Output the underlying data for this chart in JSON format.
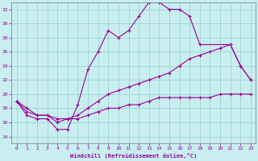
{
  "title": "Windchill (Refroidissement éolien,°C)",
  "bg_color": "#c8eef0",
  "line_color": "#990099",
  "grid_color": "#99cccc",
  "xlim": [
    -0.5,
    23.5
  ],
  "ylim": [
    13,
    33
  ],
  "xticks": [
    0,
    1,
    2,
    3,
    4,
    5,
    6,
    7,
    8,
    9,
    10,
    11,
    12,
    13,
    14,
    15,
    16,
    17,
    18,
    19,
    20,
    21,
    22,
    23
  ],
  "yticks": [
    14,
    16,
    18,
    20,
    22,
    24,
    26,
    28,
    30,
    32
  ],
  "curve1_x": [
    0,
    1,
    2,
    3,
    4,
    5,
    6,
    7,
    8,
    9,
    10,
    11,
    12,
    13,
    14,
    15,
    16,
    17,
    18,
    21,
    22,
    23
  ],
  "curve1_y": [
    19,
    17,
    16.5,
    16.5,
    15,
    15,
    18.5,
    23.5,
    26,
    29,
    28,
    29,
    31,
    33,
    33,
    32,
    32,
    31,
    27,
    27,
    24,
    22
  ],
  "curve2_x": [
    0,
    1,
    2,
    3,
    4,
    5,
    6,
    7,
    8,
    9,
    10,
    11,
    12,
    13,
    14,
    15,
    16,
    17,
    18,
    19,
    20,
    21,
    22,
    23
  ],
  "curve2_y": [
    19,
    18,
    17,
    17,
    16,
    16.5,
    17,
    18,
    19,
    20,
    20.5,
    21,
    21.5,
    22,
    22.5,
    23,
    24,
    25,
    25.5,
    26,
    26.5,
    27,
    24,
    22
  ],
  "curve3_x": [
    0,
    1,
    2,
    3,
    4,
    5,
    6,
    7,
    8,
    9,
    10,
    11,
    12,
    13,
    14,
    15,
    16,
    17,
    18,
    19,
    20,
    21,
    22,
    23
  ],
  "curve3_y": [
    19,
    17.5,
    17,
    17,
    16.5,
    16.5,
    16.5,
    17,
    17.5,
    18,
    18,
    18.5,
    18.5,
    19,
    19.5,
    19.5,
    19.5,
    19.5,
    19.5,
    19.5,
    20,
    20,
    20,
    20
  ]
}
